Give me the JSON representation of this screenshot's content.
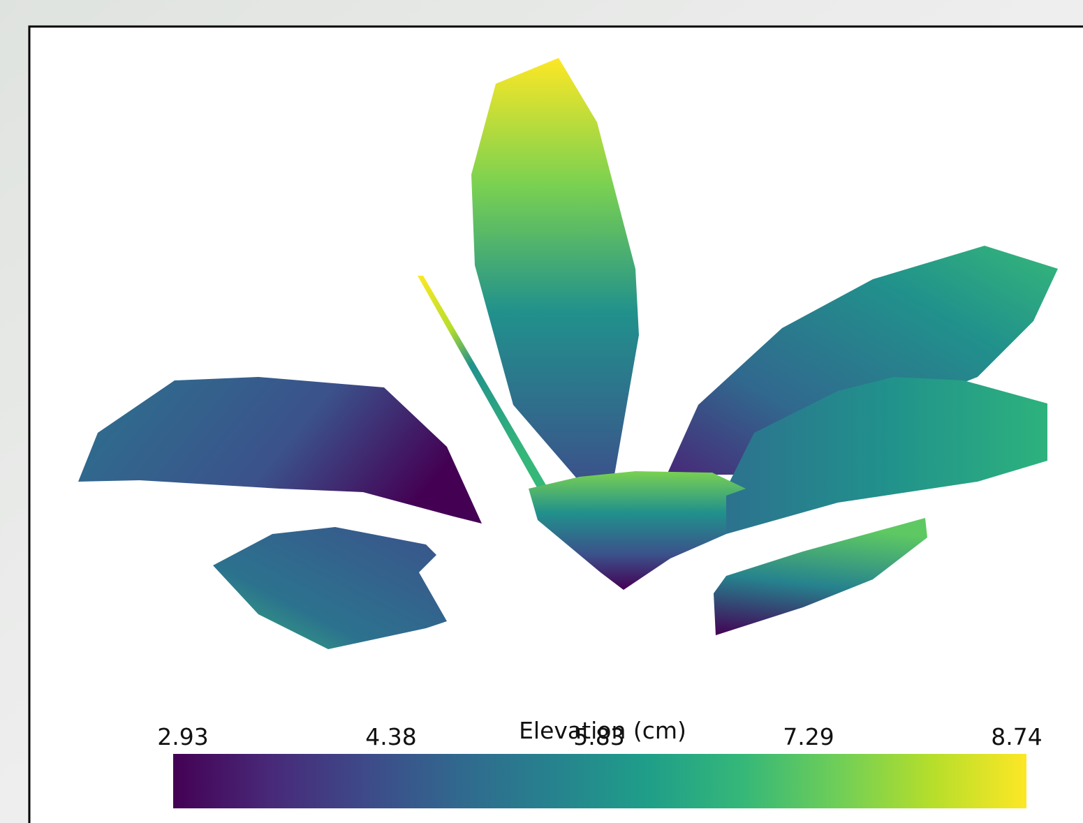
{
  "chart_data": {
    "type": "surface",
    "colorbar_title": "Elevation (cm)",
    "clim": [
      2.93,
      8.74
    ],
    "ticks": [
      2.93,
      4.38,
      5.83,
      7.29,
      8.74
    ],
    "colormap": [
      "#440154",
      "#482878",
      "#3e4989",
      "#31688e",
      "#26828e",
      "#1f9e89",
      "#35b779",
      "#6ece58",
      "#b5de2b",
      "#fde725"
    ]
  }
}
